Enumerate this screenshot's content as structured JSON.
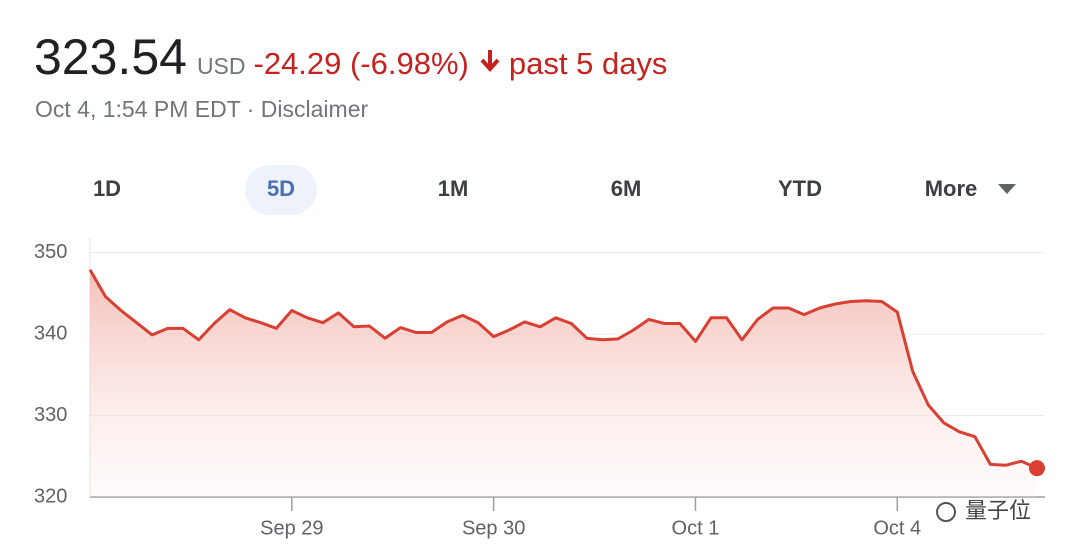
{
  "header": {
    "price": "323.54",
    "currency": "USD",
    "change": "-24.29 (-6.98%)",
    "period": "past 5 days",
    "timestamp": "Oct 4, 1:54 PM EDT · Disclaimer"
  },
  "tabs": [
    "1D",
    "5D",
    "1M",
    "6M",
    "YTD",
    "More"
  ],
  "watermark": "量子位",
  "chart_data": {
    "type": "line",
    "categories": [
      null,
      null,
      null,
      null,
      null,
      null,
      null,
      null,
      null,
      null,
      null,
      null,
      null,
      "Sep 29",
      null,
      null,
      null,
      null,
      null,
      null,
      null,
      null,
      null,
      null,
      null,
      null,
      "Sep 30",
      null,
      null,
      null,
      null,
      null,
      null,
      null,
      null,
      null,
      null,
      null,
      null,
      "Oct 1",
      null,
      null,
      null,
      null,
      null,
      null,
      null,
      null,
      null,
      null,
      null,
      null,
      "Oct 4",
      null,
      null,
      null,
      null,
      null,
      null,
      null,
      null,
      null
    ],
    "series": [
      {
        "color": "#d93f33",
        "values": [
          347.9,
          344.6,
          342.9,
          341.4,
          339.9,
          340.7,
          340.7,
          339.3,
          341.3,
          343.0,
          342.0,
          341.4,
          340.7,
          342.9,
          342.0,
          341.4,
          342.6,
          340.9,
          341.0,
          339.5,
          340.8,
          340.2,
          340.2,
          341.5,
          342.3,
          341.4,
          339.7,
          340.5,
          341.5,
          340.9,
          342.0,
          341.3,
          339.5,
          339.3,
          339.4,
          340.5,
          341.8,
          341.3,
          341.3,
          339.1,
          342.0,
          342.0,
          339.3,
          341.8,
          343.2,
          343.2,
          342.4,
          343.2,
          343.7,
          344.0,
          344.1,
          344.0,
          342.7,
          335.4,
          331.3,
          329.1,
          328.0,
          327.4,
          324.0,
          323.9,
          324.4,
          323.54
        ]
      }
    ],
    "ylim": [
      320,
      351.8
    ],
    "yticks": [
      320,
      330,
      340,
      350
    ],
    "grid": true
  }
}
